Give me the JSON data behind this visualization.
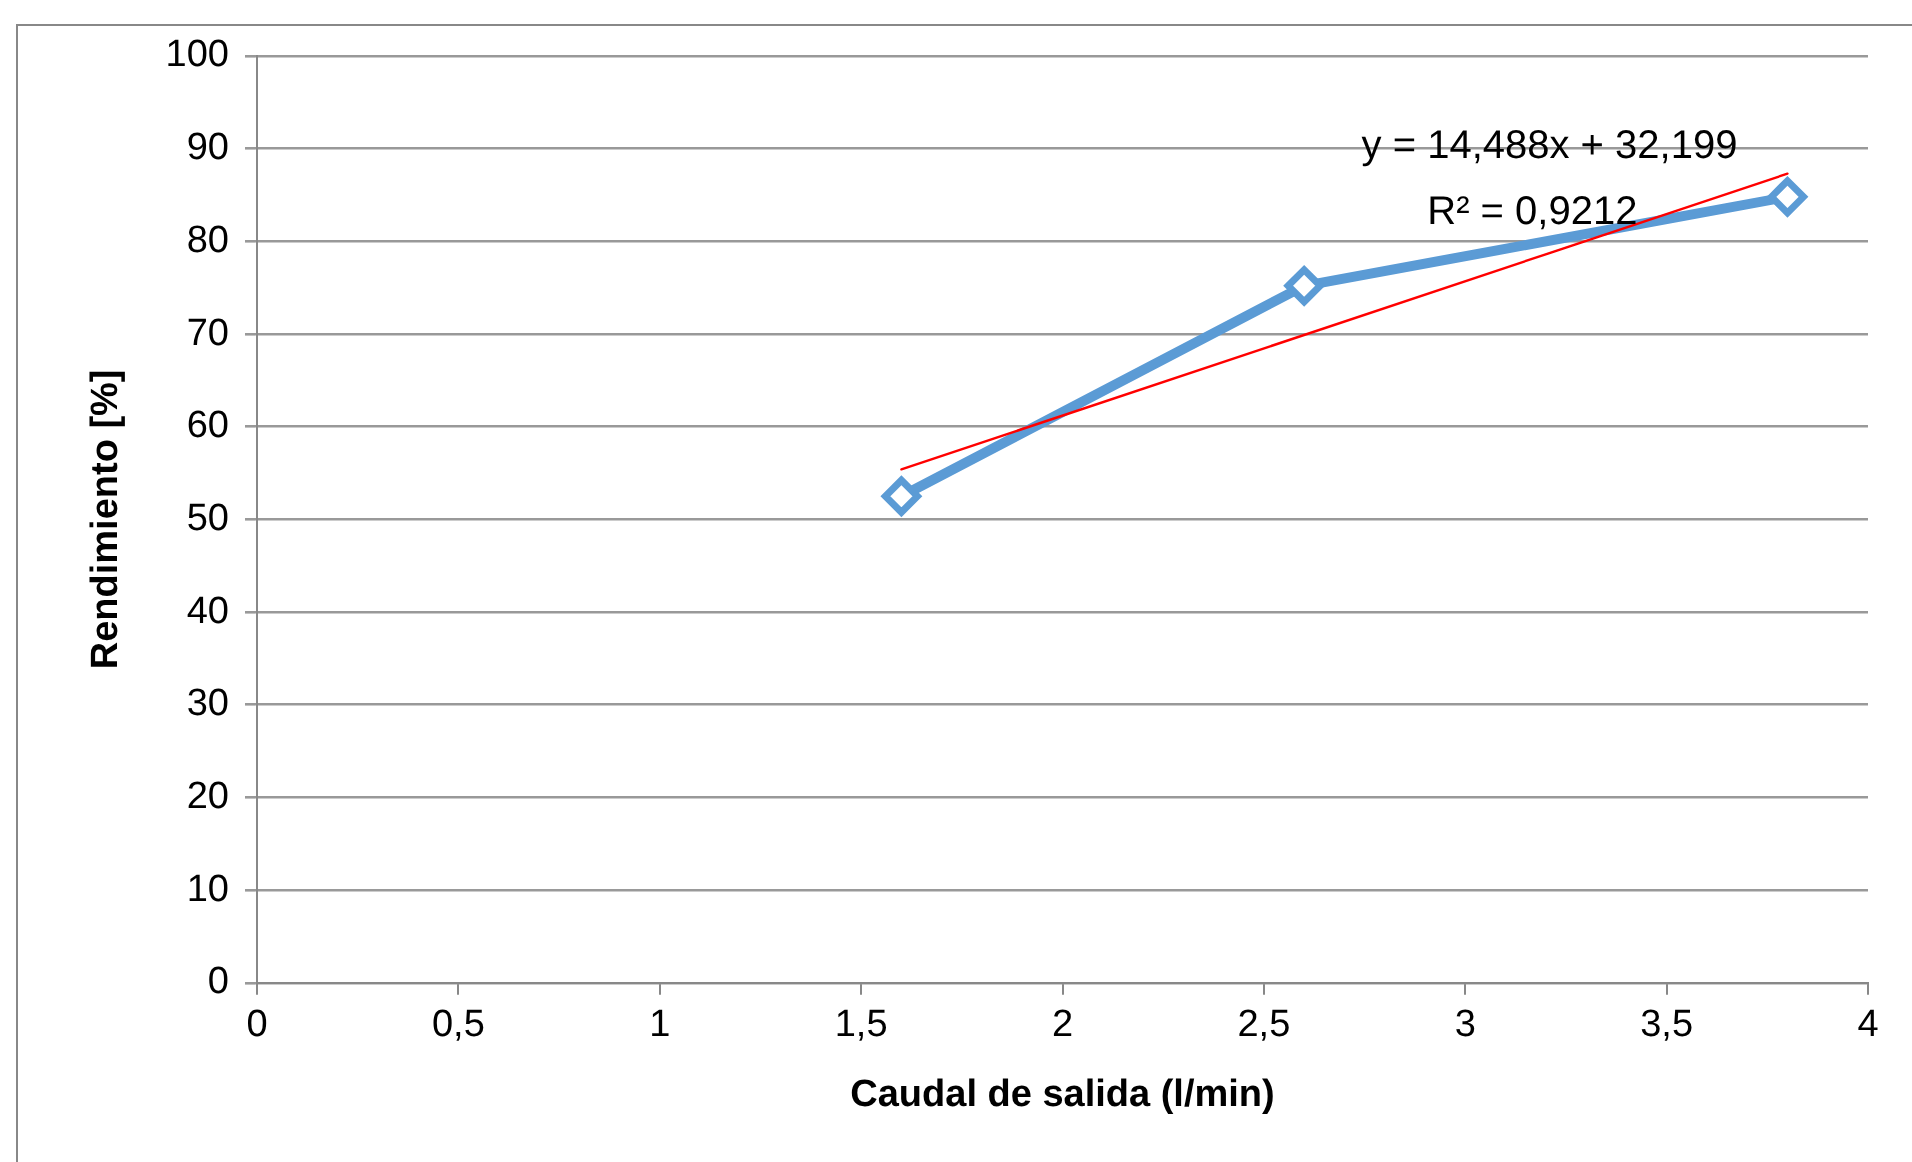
{
  "chart_data": {
    "type": "line",
    "xlabel": "Caudal de salida (l/min)",
    "ylabel": "Rendimiento [%]",
    "xlim": [
      0,
      4
    ],
    "xticks": [
      0,
      {
        "value": 0.5,
        "label": "0,5"
      },
      1,
      {
        "value": 1.5,
        "label": "1,5"
      },
      2,
      {
        "value": 2.5,
        "label": "2,5"
      },
      3,
      {
        "value": 3.5,
        "label": "3,5"
      },
      4
    ],
    "ylim": [
      0,
      100
    ],
    "yticks": [
      0,
      10,
      20,
      30,
      40,
      50,
      60,
      70,
      80,
      90,
      100
    ],
    "grid": "y",
    "legend": false,
    "marker": "diamond",
    "series": [
      {
        "x": [
          1.6,
          2.6,
          3.8
        ],
        "values": [
          52.5,
          75.2,
          84.8
        ],
        "color": "#5b9bd5"
      },
      {
        "type": "line",
        "marker": "none",
        "x": [
          1.6,
          3.8
        ],
        "values": [
          55.4,
          87.3
        ],
        "color": "#ff0000"
      }
    ],
    "annotations": [
      "y = 14,488x + 32,199",
      "R² = 0,9212"
    ]
  }
}
